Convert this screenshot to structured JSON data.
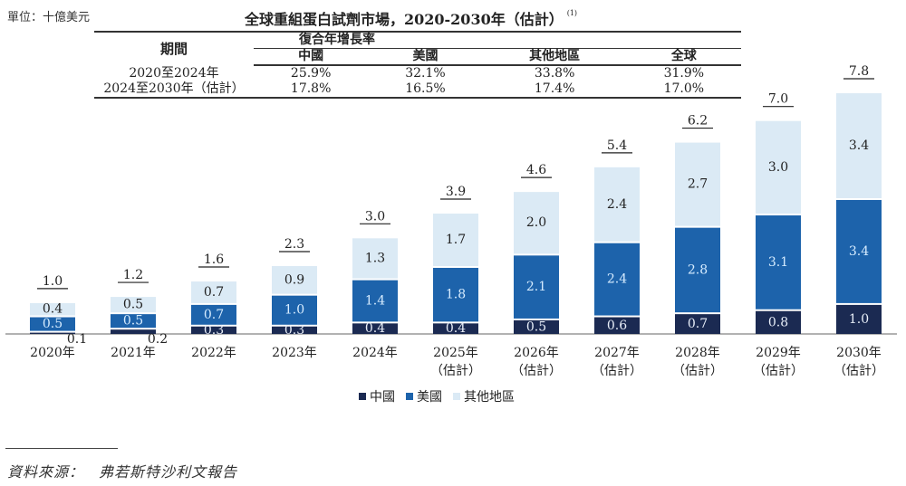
{
  "unit_label": "單位：十億美元",
  "title": "全球重組蛋白試劑市場，2020-2030年（估計）",
  "title_note": "(1)",
  "cagr_table": {
    "period_header": "期間",
    "group_header": "復合年增長率",
    "columns": [
      "中國",
      "美國",
      "其他地區",
      "全球"
    ],
    "rows": [
      {
        "period": "2020至2024年",
        "values": [
          "25.9%",
          "32.1%",
          "33.8%",
          "31.9%"
        ]
      },
      {
        "period": "2024至2030年（估計）",
        "values": [
          "17.8%",
          "16.5%",
          "17.4%",
          "17.0%"
        ]
      }
    ]
  },
  "colors": {
    "china": "#1b2a52",
    "usa": "#1d63ab",
    "other": "#dbeaf5",
    "usa_label": "#ffffff",
    "axis": "#999999"
  },
  "chart_data": {
    "type": "bar",
    "stacked": true,
    "title": "全球重組蛋白試劑市場，2020-2030年（估計）",
    "ylabel": "十億美元",
    "xlabel": "",
    "categories": [
      {
        "year": "2020年",
        "note": ""
      },
      {
        "year": "2021年",
        "note": ""
      },
      {
        "year": "2022年",
        "note": ""
      },
      {
        "year": "2023年",
        "note": ""
      },
      {
        "year": "2024年",
        "note": ""
      },
      {
        "year": "2025年",
        "note": "（估計）"
      },
      {
        "year": "2026年",
        "note": "（估計）"
      },
      {
        "year": "2027年",
        "note": "（估計）"
      },
      {
        "year": "2028年",
        "note": "（估計）"
      },
      {
        "year": "2029年",
        "note": "（估計）"
      },
      {
        "year": "2030年",
        "note": "（估計）"
      }
    ],
    "series": [
      {
        "name": "中國",
        "key": "china",
        "values": [
          0.1,
          0.2,
          0.3,
          0.3,
          0.4,
          0.4,
          0.5,
          0.6,
          0.7,
          0.8,
          1.0
        ]
      },
      {
        "name": "美國",
        "key": "usa",
        "values": [
          0.5,
          0.5,
          0.7,
          1.0,
          1.4,
          1.8,
          2.1,
          2.4,
          2.8,
          3.1,
          3.4
        ]
      },
      {
        "name": "其他地區",
        "key": "other",
        "values": [
          0.4,
          0.5,
          0.7,
          0.9,
          1.3,
          1.7,
          2.0,
          2.4,
          2.7,
          3.0,
          3.4
        ]
      }
    ],
    "totals": [
      1.0,
      1.2,
      1.6,
      2.3,
      3.0,
      3.9,
      4.6,
      5.4,
      6.2,
      7.0,
      7.8
    ],
    "ylim": [
      0,
      8
    ],
    "grid": false,
    "legend_position": "bottom-center"
  },
  "legend": [
    {
      "key": "china",
      "label": "中國"
    },
    {
      "key": "usa",
      "label": "美國"
    },
    {
      "key": "other",
      "label": "其他地區"
    }
  ],
  "source": {
    "label": "資料來源：",
    "text": "弗若斯特沙利文報告"
  }
}
